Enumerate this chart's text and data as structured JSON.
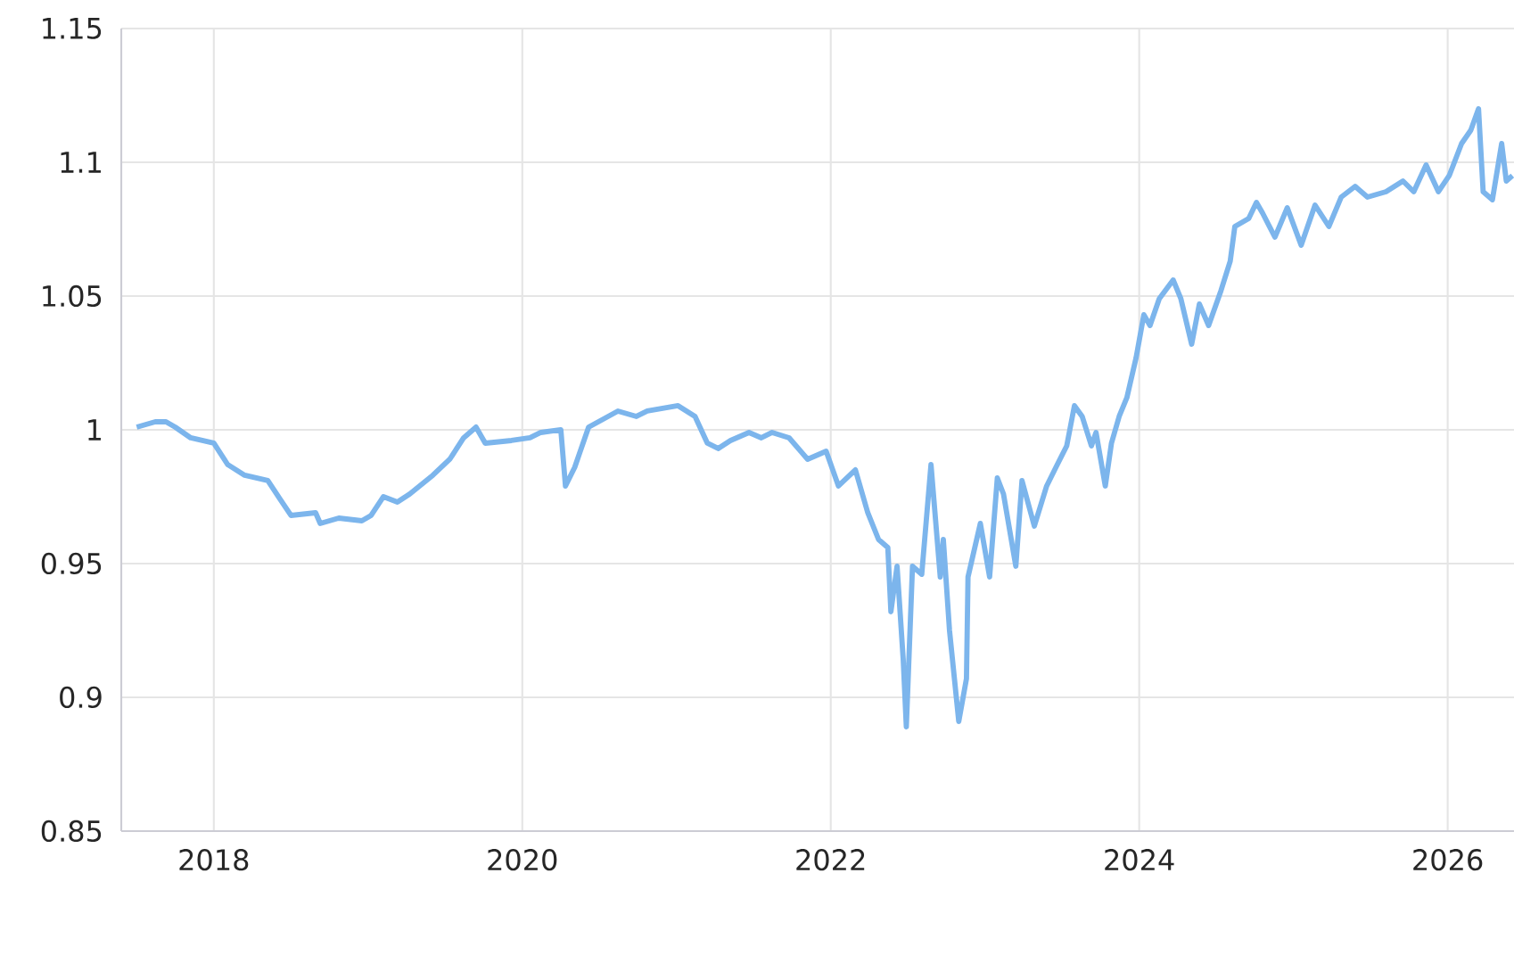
{
  "chart_data": {
    "type": "line",
    "color": "#7cb5ec",
    "grid": true,
    "marker": "none",
    "line_style": "solid",
    "xlim": [
      2017.4,
      2026.43
    ],
    "xticks": [
      2018,
      2020,
      2022,
      2024,
      2026
    ],
    "ylim": [
      0.85,
      1.15
    ],
    "yticks": [
      0.85,
      0.9,
      0.95,
      1,
      1.05,
      1.1,
      1.15
    ],
    "x": [
      2017.5,
      2017.62,
      2017.69,
      2017.75,
      2017.85,
      2018.0,
      2018.09,
      2018.2,
      2018.35,
      2018.43,
      2018.5,
      2018.66,
      2018.69,
      2018.81,
      2018.96,
      2019.02,
      2019.1,
      2019.19,
      2019.27,
      2019.42,
      2019.53,
      2019.62,
      2019.7,
      2019.76,
      2019.93,
      2020.05,
      2020.12,
      2020.25,
      2020.28,
      2020.34,
      2020.43,
      2020.62,
      2020.74,
      2020.81,
      2021.01,
      2021.12,
      2021.2,
      2021.27,
      2021.35,
      2021.47,
      2021.55,
      2021.62,
      2021.73,
      2021.85,
      2021.97,
      2022.05,
      2022.16,
      2022.24,
      2022.31,
      2022.37,
      2022.39,
      2022.43,
      2022.47,
      2022.49,
      2022.53,
      2022.59,
      2022.65,
      2022.71,
      2022.73,
      2022.77,
      2022.83,
      2022.88,
      2022.89,
      2022.97,
      2023.03,
      2023.08,
      2023.12,
      2023.2,
      2023.24,
      2023.32,
      2023.4,
      2023.46,
      2023.53,
      2023.58,
      2023.63,
      2023.69,
      2023.72,
      2023.78,
      2023.82,
      2023.87,
      2023.92,
      2023.98,
      2024.03,
      2024.07,
      2024.13,
      2024.22,
      2024.27,
      2024.34,
      2024.39,
      2024.45,
      2024.53,
      2024.59,
      2024.62,
      2024.71,
      2024.76,
      2024.8,
      2024.88,
      2024.96,
      2025.05,
      2025.14,
      2025.23,
      2025.31,
      2025.4,
      2025.48,
      2025.6,
      2025.71,
      2025.78,
      2025.86,
      2025.94,
      2026.01,
      2026.09,
      2026.15,
      2026.2,
      2026.23,
      2026.29,
      2026.35,
      2026.38,
      2026.42
    ],
    "values": [
      1.001,
      1.003,
      1.003,
      1.001,
      0.997,
      0.995,
      0.987,
      0.983,
      0.981,
      0.974,
      0.968,
      0.969,
      0.965,
      0.967,
      0.966,
      0.968,
      0.975,
      0.973,
      0.976,
      0.983,
      0.989,
      0.997,
      1.001,
      0.995,
      0.996,
      0.997,
      0.999,
      1.0,
      0.979,
      0.986,
      1.001,
      1.007,
      1.005,
      1.007,
      1.009,
      1.005,
      0.995,
      0.993,
      0.996,
      0.999,
      0.997,
      0.999,
      0.997,
      0.989,
      0.992,
      0.979,
      0.985,
      0.969,
      0.959,
      0.956,
      0.932,
      0.949,
      0.914,
      0.889,
      0.949,
      0.946,
      0.987,
      0.945,
      0.959,
      0.925,
      0.891,
      0.907,
      0.945,
      0.965,
      0.945,
      0.982,
      0.976,
      0.949,
      0.981,
      0.964,
      0.979,
      0.986,
      0.994,
      1.009,
      1.005,
      0.994,
      0.999,
      0.979,
      0.995,
      1.005,
      1.012,
      1.027,
      1.043,
      1.039,
      1.049,
      1.056,
      1.049,
      1.032,
      1.047,
      1.039,
      1.052,
      1.063,
      1.076,
      1.079,
      1.085,
      1.081,
      1.072,
      1.083,
      1.069,
      1.084,
      1.076,
      1.087,
      1.091,
      1.087,
      1.089,
      1.093,
      1.089,
      1.099,
      1.089,
      1.095,
      1.107,
      1.112,
      1.12,
      1.089,
      1.086,
      1.107,
      1.093,
      1.095
    ]
  }
}
